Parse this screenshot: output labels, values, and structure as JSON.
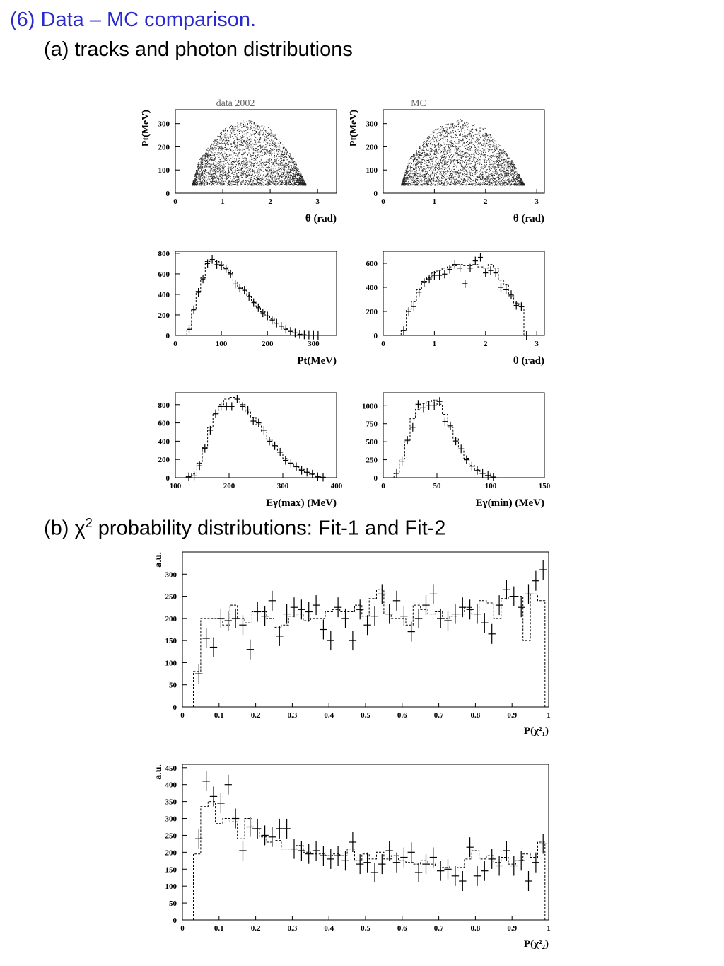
{
  "page": {
    "heading": "(6) Data – MC comparison.",
    "sub_a": "(a) tracks and photon distributions",
    "sub_b_prefix": "(b) ",
    "sub_b_chi": "χ",
    "sub_b_sup": "2",
    "sub_b_suffix": " probability distributions: Fit-1 and Fit-2"
  },
  "chart_data": [
    {
      "id": "scatter_data",
      "type": "scatter",
      "title": "data 2002",
      "xlabel": "θ (rad)",
      "ylabel": "Pt(MeV)",
      "xlim": [
        0,
        3.4
      ],
      "ylim": [
        0,
        360
      ],
      "xticks": [
        0,
        1,
        2,
        3
      ],
      "yticks": [
        0,
        100,
        200,
        300
      ],
      "envelope": [
        [
          0.35,
          40
        ],
        [
          0.5,
          150
        ],
        [
          1.0,
          280
        ],
        [
          1.5,
          320
        ],
        [
          2.0,
          280
        ],
        [
          2.5,
          150
        ],
        [
          2.75,
          40
        ]
      ]
    },
    {
      "id": "scatter_mc",
      "type": "scatter",
      "title": "MC",
      "xlabel": "θ (rad)",
      "ylabel": "Pt(MeV)",
      "xlim": [
        0,
        3.15
      ],
      "ylim": [
        0,
        360
      ],
      "xticks": [
        0,
        1,
        2,
        3
      ],
      "yticks": [
        0,
        100,
        200,
        300
      ],
      "envelope": [
        [
          0.35,
          40
        ],
        [
          0.5,
          150
        ],
        [
          1.0,
          280
        ],
        [
          1.5,
          320
        ],
        [
          2.0,
          280
        ],
        [
          2.5,
          150
        ],
        [
          2.75,
          40
        ]
      ]
    },
    {
      "id": "pt_hist",
      "type": "line",
      "xlabel": "Pt(MeV)",
      "xlim": [
        0,
        350
      ],
      "ylim": [
        0,
        820
      ],
      "xticks": [
        0,
        100,
        200,
        300
      ],
      "yticks": [
        0,
        200,
        400,
        600,
        800
      ],
      "series": [
        {
          "style": "points",
          "x": [
            30,
            40,
            50,
            60,
            70,
            80,
            90,
            100,
            110,
            120,
            130,
            140,
            150,
            160,
            170,
            180,
            190,
            200,
            210,
            220,
            230,
            240,
            250,
            260,
            270,
            280,
            290,
            300,
            310
          ],
          "values": [
            60,
            250,
            420,
            550,
            700,
            740,
            690,
            680,
            650,
            600,
            500,
            460,
            440,
            380,
            320,
            270,
            220,
            190,
            150,
            120,
            90,
            60,
            40,
            25,
            10,
            5,
            3,
            2,
            1
          ]
        },
        {
          "style": "dashed",
          "x": [
            30,
            40,
            50,
            60,
            70,
            80,
            90,
            100,
            110,
            120,
            130,
            140,
            150,
            160,
            170,
            180,
            190,
            200,
            210,
            220,
            230,
            240,
            250,
            260,
            270,
            280,
            290,
            300,
            310
          ],
          "values": [
            60,
            250,
            430,
            560,
            720,
            740,
            720,
            690,
            660,
            610,
            520,
            470,
            440,
            390,
            330,
            280,
            230,
            190,
            160,
            120,
            90,
            65,
            40,
            25,
            12,
            6,
            3,
            2,
            1
          ]
        }
      ]
    },
    {
      "id": "theta_hist",
      "type": "line",
      "xlabel": "θ (rad)",
      "xlim": [
        0,
        3.15
      ],
      "ylim": [
        0,
        700
      ],
      "xticks": [
        0,
        1,
        2,
        3
      ],
      "yticks": [
        0,
        200,
        400,
        600
      ],
      "series": [
        {
          "style": "points",
          "x": [
            0.4,
            0.5,
            0.6,
            0.7,
            0.8,
            0.9,
            1.0,
            1.1,
            1.2,
            1.3,
            1.4,
            1.5,
            1.6,
            1.7,
            1.8,
            1.9,
            2.0,
            2.1,
            2.2,
            2.3,
            2.4,
            2.5,
            2.6,
            2.7,
            2.8
          ],
          "values": [
            40,
            200,
            240,
            360,
            440,
            470,
            500,
            500,
            510,
            550,
            590,
            560,
            430,
            560,
            620,
            650,
            520,
            540,
            520,
            400,
            380,
            340,
            250,
            240,
            0
          ]
        },
        {
          "style": "dashed",
          "x": [
            0.4,
            0.5,
            0.6,
            0.7,
            0.8,
            0.9,
            1.0,
            1.1,
            1.2,
            1.3,
            1.4,
            1.5,
            1.6,
            1.7,
            1.8,
            1.9,
            2.0,
            2.1,
            2.2,
            2.3,
            2.4,
            2.5,
            2.6,
            2.7,
            2.8
          ],
          "values": [
            40,
            220,
            280,
            380,
            450,
            480,
            520,
            540,
            560,
            570,
            580,
            590,
            580,
            580,
            590,
            570,
            560,
            590,
            560,
            460,
            420,
            330,
            270,
            240,
            0
          ]
        }
      ]
    },
    {
      "id": "egmax_hist",
      "type": "line",
      "xlabel": "Eγ(max) (MeV)",
      "xlim": [
        100,
        400
      ],
      "ylim": [
        0,
        930
      ],
      "xticks": [
        100,
        200,
        300,
        400
      ],
      "yticks": [
        0,
        200,
        400,
        600,
        800
      ],
      "series": [
        {
          "style": "points",
          "x": [
            125,
            135,
            145,
            155,
            165,
            175,
            185,
            195,
            205,
            215,
            225,
            235,
            245,
            255,
            265,
            275,
            285,
            295,
            305,
            315,
            325,
            335,
            345,
            355,
            365,
            375
          ],
          "values": [
            10,
            20,
            130,
            320,
            520,
            700,
            780,
            780,
            780,
            860,
            780,
            740,
            620,
            600,
            520,
            400,
            350,
            280,
            190,
            160,
            120,
            80,
            60,
            40,
            10,
            5
          ]
        },
        {
          "style": "dashed",
          "x": [
            125,
            135,
            145,
            155,
            165,
            175,
            185,
            195,
            205,
            215,
            225,
            235,
            245,
            255,
            265,
            275,
            285,
            295,
            305,
            315,
            325,
            335,
            345,
            355,
            365,
            375
          ],
          "values": [
            10,
            40,
            160,
            330,
            550,
            700,
            800,
            860,
            880,
            860,
            800,
            720,
            660,
            580,
            500,
            420,
            350,
            280,
            210,
            160,
            120,
            90,
            60,
            35,
            15,
            5
          ]
        }
      ]
    },
    {
      "id": "egmin_hist",
      "type": "line",
      "xlabel": "Eγ(min) (MeV)",
      "xlim": [
        0,
        150
      ],
      "ylim": [
        0,
        1180
      ],
      "xticks": [
        0,
        50,
        100,
        150
      ],
      "yticks": [
        0,
        250,
        500,
        750,
        1000
      ],
      "series": [
        {
          "style": "points",
          "x": [
            12.5,
            17.5,
            22.5,
            27.5,
            32.5,
            37.5,
            42.5,
            47.5,
            52.5,
            57.5,
            62.5,
            67.5,
            72.5,
            77.5,
            82.5,
            87.5,
            92.5,
            97.5,
            102.5
          ],
          "values": [
            60,
            230,
            520,
            700,
            1020,
            970,
            1000,
            1000,
            1060,
            780,
            720,
            510,
            400,
            250,
            160,
            100,
            60,
            30,
            10
          ]
        },
        {
          "style": "dashed",
          "x": [
            12.5,
            17.5,
            22.5,
            27.5,
            32.5,
            37.5,
            42.5,
            47.5,
            52.5,
            57.5,
            62.5,
            67.5,
            72.5,
            77.5,
            82.5,
            87.5,
            92.5,
            97.5,
            102.5
          ],
          "values": [
            60,
            260,
            500,
            820,
            950,
            1030,
            1060,
            1080,
            1020,
            880,
            700,
            540,
            400,
            270,
            170,
            110,
            60,
            30,
            10
          ]
        }
      ]
    },
    {
      "id": "chi2_fit1",
      "type": "line",
      "ylabel": "a.u.",
      "xlabel": "P(χ²₁)",
      "xlim": [
        0,
        1
      ],
      "ylim": [
        0,
        350
      ],
      "xticks": [
        0,
        0.1,
        0.2,
        0.3,
        0.4,
        0.5,
        0.6,
        0.7,
        0.8,
        0.9,
        1
      ],
      "xticklabels": [
        "0",
        "0.1",
        "0.2",
        "0.3",
        "0.4",
        "0.5",
        "0.6",
        "0.7",
        "0.8",
        "0.9",
        "1"
      ],
      "yticks": [
        0,
        50,
        100,
        150,
        200,
        250,
        300
      ],
      "series": [
        {
          "style": "points",
          "x": [
            0.045,
            0.065,
            0.085,
            0.105,
            0.125,
            0.145,
            0.165,
            0.185,
            0.205,
            0.225,
            0.245,
            0.265,
            0.285,
            0.305,
            0.325,
            0.345,
            0.365,
            0.385,
            0.405,
            0.425,
            0.445,
            0.465,
            0.485,
            0.505,
            0.525,
            0.545,
            0.565,
            0.585,
            0.605,
            0.625,
            0.645,
            0.665,
            0.685,
            0.705,
            0.725,
            0.745,
            0.765,
            0.785,
            0.805,
            0.825,
            0.845,
            0.865,
            0.885,
            0.905,
            0.925,
            0.945,
            0.965,
            0.985
          ],
          "values": [
            75,
            155,
            135,
            200,
            195,
            200,
            185,
            130,
            215,
            205,
            240,
            160,
            210,
            225,
            220,
            215,
            230,
            175,
            150,
            225,
            200,
            150,
            220,
            185,
            205,
            255,
            210,
            240,
            205,
            170,
            200,
            230,
            255,
            200,
            195,
            210,
            225,
            220,
            210,
            190,
            165,
            230,
            265,
            250,
            225,
            255,
            285,
            310
          ]
        },
        {
          "style": "dashed",
          "x": [
            0.04,
            0.06,
            0.08,
            0.1,
            0.12,
            0.14,
            0.16,
            0.18,
            0.2,
            0.22,
            0.24,
            0.26,
            0.28,
            0.3,
            0.32,
            0.34,
            0.36,
            0.38,
            0.4,
            0.42,
            0.44,
            0.46,
            0.48,
            0.5,
            0.52,
            0.54,
            0.56,
            0.58,
            0.6,
            0.62,
            0.64,
            0.66,
            0.68,
            0.7,
            0.72,
            0.74,
            0.76,
            0.78,
            0.8,
            0.82,
            0.84,
            0.86,
            0.88,
            0.9,
            0.92,
            0.94,
            0.96,
            0.98
          ],
          "values": [
            80,
            200,
            200,
            200,
            185,
            230,
            200,
            190,
            215,
            215,
            200,
            180,
            185,
            205,
            210,
            195,
            200,
            200,
            215,
            220,
            215,
            215,
            230,
            205,
            245,
            265,
            210,
            200,
            200,
            185,
            230,
            220,
            210,
            215,
            200,
            205,
            210,
            225,
            210,
            240,
            235,
            200,
            245,
            250,
            250,
            150,
            255,
            240
          ]
        }
      ]
    },
    {
      "id": "chi2_fit2",
      "type": "line",
      "ylabel": "a.u.",
      "xlabel": "P(χ²₂)",
      "xlim": [
        0,
        1
      ],
      "ylim": [
        0,
        460
      ],
      "xticks": [
        0,
        0.1,
        0.2,
        0.3,
        0.4,
        0.5,
        0.6,
        0.7,
        0.8,
        0.9,
        1
      ],
      "xticklabels": [
        "0",
        "0.1",
        "0.2",
        "0.3",
        "0.4",
        "0.5",
        "0.6",
        "0.7",
        "0.8",
        "0.9",
        "1"
      ],
      "yticks": [
        0,
        50,
        100,
        150,
        200,
        250,
        300,
        350,
        400,
        450
      ],
      "series": [
        {
          "style": "points",
          "x": [
            0.045,
            0.065,
            0.085,
            0.105,
            0.125,
            0.145,
            0.165,
            0.185,
            0.205,
            0.225,
            0.245,
            0.265,
            0.285,
            0.305,
            0.325,
            0.345,
            0.365,
            0.385,
            0.405,
            0.425,
            0.445,
            0.465,
            0.485,
            0.505,
            0.525,
            0.545,
            0.565,
            0.585,
            0.605,
            0.625,
            0.645,
            0.665,
            0.685,
            0.705,
            0.725,
            0.745,
            0.765,
            0.785,
            0.805,
            0.825,
            0.845,
            0.865,
            0.885,
            0.905,
            0.925,
            0.945,
            0.965,
            0.985
          ],
          "values": [
            240,
            410,
            365,
            345,
            400,
            300,
            205,
            275,
            270,
            250,
            245,
            270,
            270,
            210,
            205,
            195,
            205,
            190,
            180,
            190,
            175,
            230,
            165,
            170,
            140,
            165,
            205,
            170,
            185,
            200,
            140,
            165,
            185,
            145,
            150,
            130,
            115,
            215,
            130,
            145,
            180,
            160,
            205,
            160,
            175,
            115,
            170,
            225
          ]
        },
        {
          "style": "dashed",
          "x": [
            0.04,
            0.06,
            0.08,
            0.1,
            0.12,
            0.14,
            0.16,
            0.18,
            0.2,
            0.22,
            0.24,
            0.26,
            0.28,
            0.3,
            0.32,
            0.34,
            0.36,
            0.38,
            0.4,
            0.42,
            0.44,
            0.46,
            0.48,
            0.5,
            0.52,
            0.54,
            0.56,
            0.58,
            0.6,
            0.62,
            0.64,
            0.66,
            0.68,
            0.7,
            0.72,
            0.74,
            0.76,
            0.78,
            0.8,
            0.82,
            0.84,
            0.86,
            0.88,
            0.9,
            0.92,
            0.94,
            0.96,
            0.98
          ],
          "values": [
            195,
            335,
            350,
            285,
            300,
            290,
            240,
            300,
            270,
            245,
            230,
            235,
            210,
            210,
            220,
            200,
            195,
            195,
            190,
            195,
            190,
            210,
            175,
            195,
            180,
            200,
            180,
            190,
            175,
            170,
            165,
            175,
            165,
            160,
            155,
            160,
            155,
            180,
            205,
            180,
            190,
            170,
            185,
            165,
            175,
            195,
            185,
            230
          ]
        }
      ]
    }
  ]
}
